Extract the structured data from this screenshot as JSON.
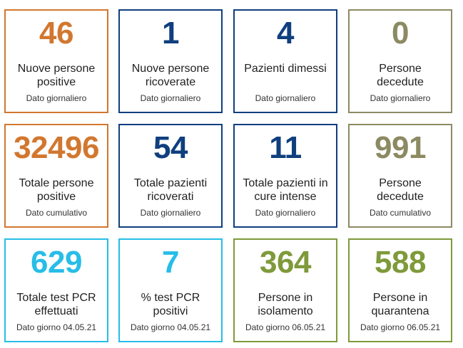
{
  "colors": {
    "orange": "#d2772f",
    "navy": "#0f3f7e",
    "olive": "#8c8a62",
    "cyan": "#27bde8",
    "green": "#7f9a3a"
  },
  "tiles": [
    {
      "value": "46",
      "label": "Nuove persone\npositive",
      "sub": "Dato giornaliero"
    },
    {
      "value": "1",
      "label": "Nuove persone\nricoverate",
      "sub": "Dato giornaliero"
    },
    {
      "value": "4",
      "label": "Pazienti dimessi",
      "sub": "Dato giornaliero"
    },
    {
      "value": "0",
      "label": "Persone\ndecedute",
      "sub": "Dato giornaliero"
    },
    {
      "value": "32496",
      "label": "Totale persone\npositive",
      "sub": "Dato cumulativo"
    },
    {
      "value": "54",
      "label": "Totale pazienti\nricoverati",
      "sub": "Dato giornaliero"
    },
    {
      "value": "11",
      "label": "Totale pazienti in\ncure intense",
      "sub": "Dato giornaliero"
    },
    {
      "value": "991",
      "label": "Persone\ndecedute",
      "sub": "Dato cumulativo"
    },
    {
      "value": "629",
      "label": "Totale test PCR\neffettuati",
      "sub": "Dato giorno 04.05.21"
    },
    {
      "value": "7",
      "label": "% test PCR\npositivi",
      "sub": "Dato giorno 04.05.21"
    },
    {
      "value": "364",
      "label": "Persone in\nisolamento",
      "sub": "Dato giorno 06.05.21"
    },
    {
      "value": "588",
      "label": "Persone in\nquarantena",
      "sub": "Dato giorno 06.05.21"
    }
  ]
}
